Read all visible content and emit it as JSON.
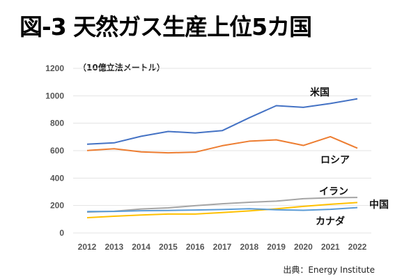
{
  "chart_data": {
    "type": "line",
    "title": "図-3 天然ガス生産上位5カ国",
    "ylabel": "（10億立法メートル）",
    "source": "出典：Energy Institute",
    "x": [
      2012,
      2013,
      2014,
      2015,
      2016,
      2017,
      2018,
      2019,
      2020,
      2021,
      2022
    ],
    "ylim": [
      0,
      1200
    ],
    "yticks": [
      0,
      200,
      400,
      600,
      800,
      1000,
      1200
    ],
    "grid": true,
    "series": [
      {
        "name": "米国",
        "color": "#4472C4",
        "values": [
          647,
          657,
          705,
          740,
          729,
          746,
          840,
          928,
          916,
          944,
          978
        ]
      },
      {
        "name": "ロシア",
        "color": "#ED7D31",
        "values": [
          601,
          614,
          591,
          584,
          589,
          636,
          669,
          679,
          638,
          702,
          618
        ]
      },
      {
        "name": "イラン",
        "color": "#A5A5A5",
        "values": [
          152,
          158,
          175,
          183,
          199,
          213,
          224,
          232,
          250,
          257,
          259
        ]
      },
      {
        "name": "中国",
        "color": "#FFC000",
        "values": [
          111,
          122,
          131,
          138,
          138,
          149,
          161,
          176,
          194,
          209,
          222
        ]
      },
      {
        "name": "カナダ",
        "color": "#5B9BD5",
        "values": [
          156,
          157,
          162,
          164,
          167,
          171,
          177,
          169,
          165,
          172,
          185
        ]
      }
    ]
  }
}
